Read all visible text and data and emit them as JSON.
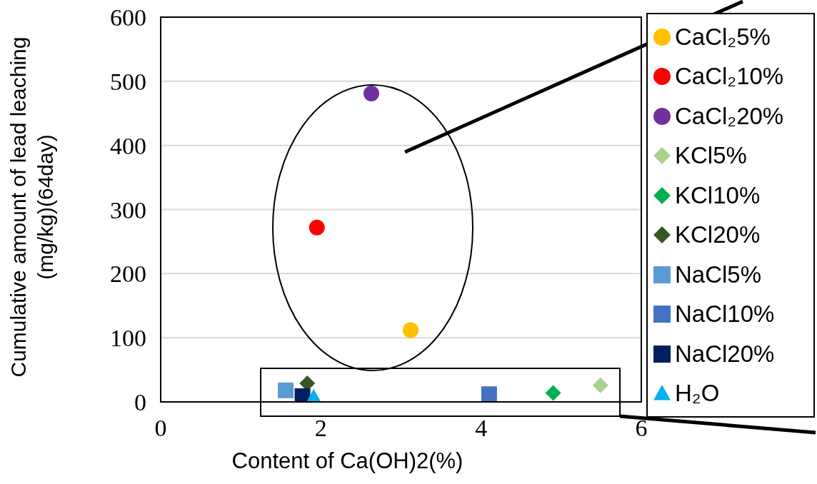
{
  "chart_data": {
    "type": "scatter",
    "xlabel": "Content of Ca(OH)2(%)",
    "ylabel": "Cumulative amount of lead leaching (mg/kg)(64day)",
    "xlim": [
      0,
      6
    ],
    "xticks": [
      0,
      2,
      4,
      6
    ],
    "ylim": [
      0,
      600
    ],
    "yticks": [
      0,
      100,
      200,
      300,
      400,
      500,
      600
    ],
    "grid": "y",
    "legend": "right",
    "series": [
      {
        "name": "CaCl₂5%",
        "color": "#ffc000",
        "marker": "circle",
        "x": [
          3.12
        ],
        "values": [
          112
        ]
      },
      {
        "name": "CaCl₂10%",
        "color": "#ff0000",
        "marker": "circle",
        "x": [
          1.95
        ],
        "values": [
          272
        ]
      },
      {
        "name": "CaCl₂20%",
        "color": "#7030a0",
        "marker": "circle",
        "x": [
          2.63
        ],
        "values": [
          481
        ]
      },
      {
        "name": "KCl5%",
        "color": "#a9d18e",
        "marker": "diamond",
        "x": [
          5.49
        ],
        "values": [
          26
        ]
      },
      {
        "name": "KCl10%",
        "color": "#00b050",
        "marker": "diamond",
        "x": [
          4.9
        ],
        "values": [
          14
        ]
      },
      {
        "name": "KCl20%",
        "color": "#375623",
        "marker": "diamond",
        "x": [
          1.83
        ],
        "values": [
          29
        ]
      },
      {
        "name": "NaCl5%",
        "color": "#5b9bd5",
        "marker": "square",
        "x": [
          1.56
        ],
        "values": [
          18
        ]
      },
      {
        "name": "NaCl10%",
        "color": "#4472c4",
        "marker": "square",
        "x": [
          4.1
        ],
        "values": [
          12
        ]
      },
      {
        "name": "NaCl20%",
        "color": "#002060",
        "marker": "square",
        "x": [
          1.77
        ],
        "values": [
          9
        ]
      },
      {
        "name": "H₂O",
        "color": "#00b0f0",
        "marker": "triangle",
        "x": [
          1.91
        ],
        "values": [
          8
        ]
      }
    ]
  }
}
